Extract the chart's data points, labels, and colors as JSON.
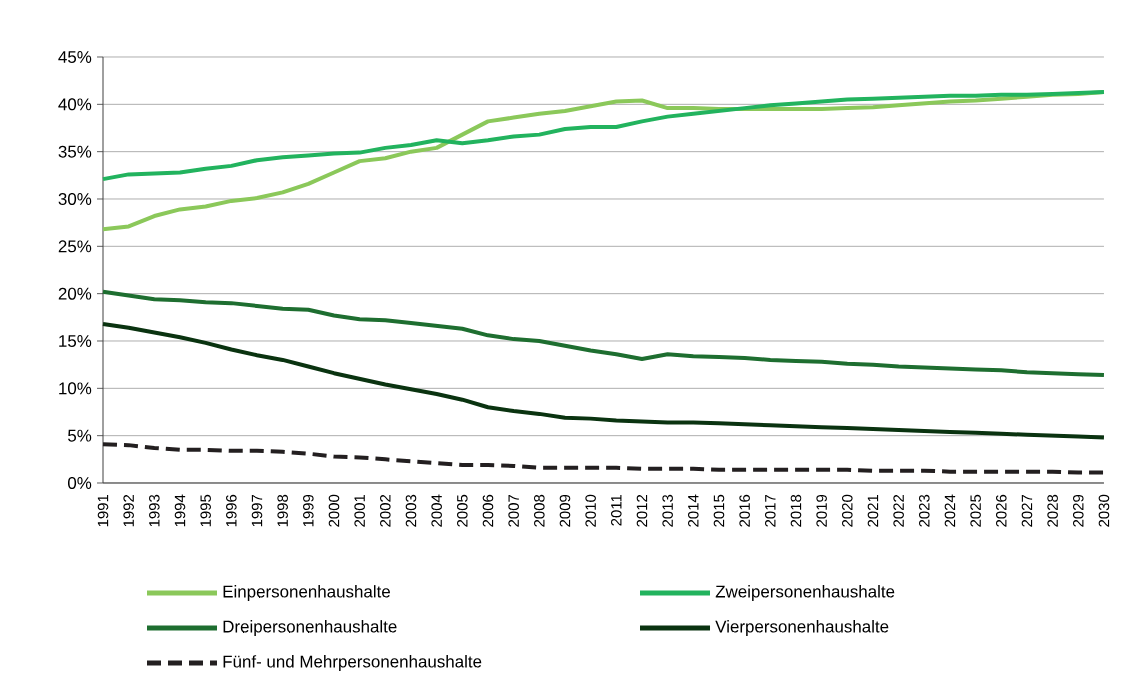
{
  "chart_data": {
    "type": "line",
    "categories": [
      "1991",
      "1992",
      "1993",
      "1994",
      "1995",
      "1996",
      "1997",
      "1998",
      "1999",
      "2000",
      "2001",
      "2002",
      "2003",
      "2004",
      "2005",
      "2006",
      "2007",
      "2008",
      "2009",
      "2010",
      "2011",
      "2012",
      "2013",
      "2014",
      "2015",
      "2016",
      "2017",
      "2018",
      "2019",
      "2020",
      "2021",
      "2022",
      "2023",
      "2024",
      "2025",
      "2026",
      "2027",
      "2028",
      "2029",
      "2030"
    ],
    "series": [
      {
        "name": "Einpersonenhaushalte",
        "color": "#8bc85a",
        "values": [
          26.8,
          27.1,
          28.2,
          28.9,
          29.2,
          29.8,
          30.1,
          30.7,
          31.6,
          32.8,
          34.0,
          34.3,
          35.0,
          35.4,
          36.8,
          38.2,
          38.6,
          39.0,
          39.3,
          39.8,
          40.3,
          40.4,
          39.6,
          39.6,
          39.5,
          39.5,
          39.5,
          39.5,
          39.5,
          39.6,
          39.7,
          39.9,
          40.1,
          40.3,
          40.4,
          40.6,
          40.8,
          41.0,
          41.1,
          41.3
        ]
      },
      {
        "name": "Zweipersonenhaushalte",
        "color": "#22b35e",
        "values": [
          32.1,
          32.6,
          32.7,
          32.8,
          33.2,
          33.5,
          34.1,
          34.4,
          34.6,
          34.8,
          34.9,
          35.4,
          35.7,
          36.2,
          35.9,
          36.2,
          36.6,
          36.8,
          37.4,
          37.6,
          37.6,
          38.2,
          38.7,
          39.0,
          39.3,
          39.6,
          39.9,
          40.1,
          40.3,
          40.5,
          40.6,
          40.7,
          40.8,
          40.9,
          40.9,
          41.0,
          41.0,
          41.1,
          41.2,
          41.3
        ]
      },
      {
        "name": "Dreipersonenhaushalte",
        "color": "#1e6e30",
        "values": [
          20.2,
          19.8,
          19.4,
          19.3,
          19.1,
          19.0,
          18.7,
          18.4,
          18.3,
          17.7,
          17.3,
          17.2,
          16.9,
          16.6,
          16.3,
          15.6,
          15.2,
          15.0,
          14.5,
          14.0,
          13.6,
          13.1,
          13.6,
          13.4,
          13.3,
          13.2,
          13.0,
          12.9,
          12.8,
          12.6,
          12.5,
          12.3,
          12.2,
          12.1,
          12.0,
          11.9,
          11.7,
          11.6,
          11.5,
          11.4
        ]
      },
      {
        "name": "Vierpersonenhaushalte",
        "color": "#0a3310",
        "values": [
          16.8,
          16.4,
          15.9,
          15.4,
          14.8,
          14.1,
          13.5,
          13.0,
          12.3,
          11.6,
          11.0,
          10.4,
          9.9,
          9.4,
          8.8,
          8.0,
          7.6,
          7.3,
          6.9,
          6.8,
          6.6,
          6.5,
          6.4,
          6.4,
          6.3,
          6.2,
          6.1,
          6.0,
          5.9,
          5.8,
          5.7,
          5.6,
          5.5,
          5.4,
          5.3,
          5.2,
          5.1,
          5.0,
          4.9,
          4.8
        ]
      },
      {
        "name": "Fünf- und Mehrpersonenhaushalte",
        "color": "#231f20",
        "line_style": "dashed",
        "values": [
          4.1,
          4.0,
          3.7,
          3.5,
          3.5,
          3.4,
          3.4,
          3.3,
          3.1,
          2.8,
          2.7,
          2.5,
          2.3,
          2.1,
          1.9,
          1.9,
          1.8,
          1.6,
          1.6,
          1.6,
          1.6,
          1.5,
          1.5,
          1.5,
          1.4,
          1.4,
          1.4,
          1.4,
          1.4,
          1.4,
          1.3,
          1.3,
          1.3,
          1.2,
          1.2,
          1.2,
          1.2,
          1.2,
          1.1,
          1.1
        ]
      }
    ],
    "ylim": [
      0,
      45
    ],
    "yticks": [
      {
        "value": 0,
        "label": "0%"
      },
      {
        "value": 5,
        "label": "5%"
      },
      {
        "value": 10,
        "label": "10%"
      },
      {
        "value": 15,
        "label": "15%"
      },
      {
        "value": 20,
        "label": "20%"
      },
      {
        "value": 25,
        "label": "25%"
      },
      {
        "value": 30,
        "label": "30%"
      },
      {
        "value": 35,
        "label": "35%"
      },
      {
        "value": 40,
        "label": "40%"
      },
      {
        "value": 45,
        "label": "45%"
      }
    ],
    "grid": "y",
    "legend": "bottom",
    "line_style": "solid"
  }
}
